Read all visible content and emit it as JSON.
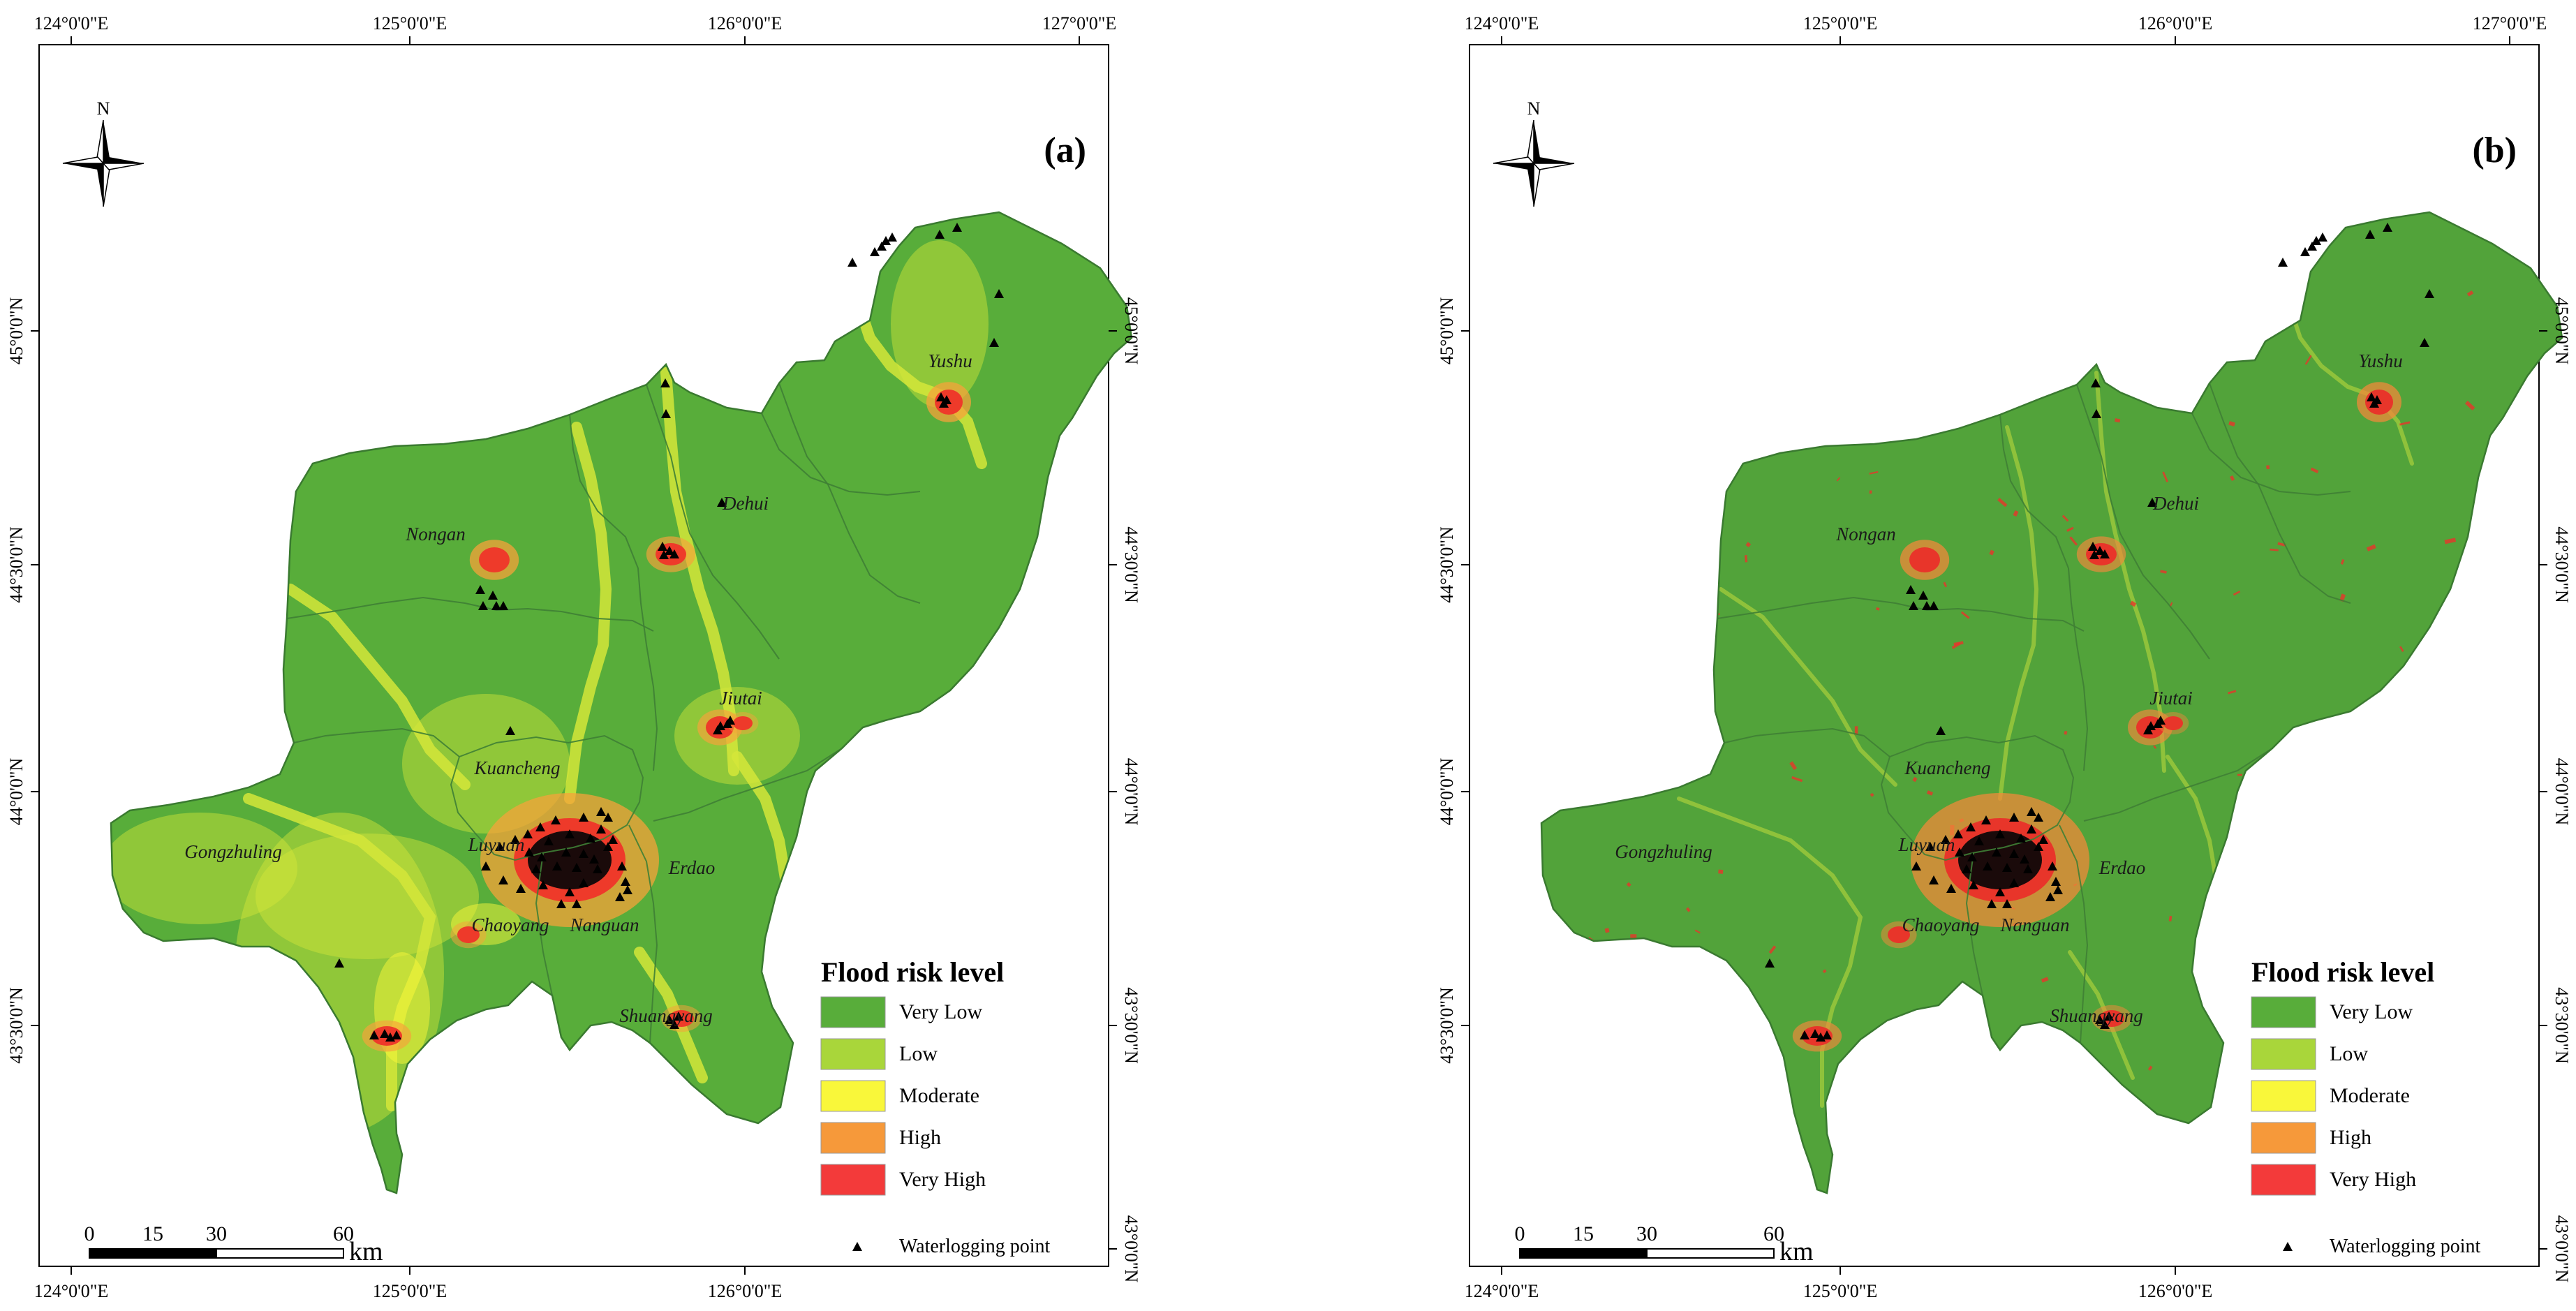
{
  "panels": [
    {
      "id": "a",
      "label": "(a)",
      "variant": "a",
      "colors": {
        "base": "#58ad3a",
        "river": "#d4e63a",
        "risk": "#f6a33a",
        "high": "#ee3a2a"
      },
      "lon_top": [
        "124°0'0\"E",
        "125°0'0\"E",
        "126°0'0\"E",
        "127°0'0\"E"
      ],
      "lon_bottom": [
        "124°0'0\"E",
        "125°0'0\"E",
        "126°0'0\"E"
      ],
      "lat_left": [
        "45°0'0\"N",
        "44°30'0\"N",
        "44°0'0\"N",
        "43°30'0\"N"
      ],
      "lat_right": [
        "45°0'0\"N",
        "44°30'0\"N",
        "44°0'0\"N",
        "43°30'0\"N",
        "43°0'0\"N"
      ]
    },
    {
      "id": "b",
      "label": "(b)",
      "variant": "b",
      "colors": {
        "base": "#52a33a",
        "river": "#a9cf3c",
        "risk": "#f08a3a",
        "high": "#e8352a"
      },
      "lon_top": [
        "124°0'0\"E",
        "125°0'0\"E",
        "126°0'0\"E",
        "127°0'0\"E"
      ],
      "lon_bottom": [
        "124°0'0\"E",
        "125°0'0\"E",
        "126°0'0\"E"
      ],
      "lat_left": [
        "45°0'0\"N",
        "44°30'0\"N",
        "44°0'0\"N",
        "43°30'0\"N"
      ],
      "lat_right": [
        "45°0'0\"N",
        "44°30'0\"N",
        "44°0'0\"N",
        "43°30'0\"N",
        "43°0'0\"N"
      ]
    }
  ],
  "places": [
    "Yushu",
    "Dehui",
    "Nongan",
    "Jiutai",
    "Kuancheng",
    "Gongzhuling",
    "Luyuan",
    "Erdao",
    "Chaoyang",
    "Nanguan",
    "Shuangyang"
  ],
  "north_label": "N",
  "scale": {
    "ticks": [
      "0",
      "15",
      "30",
      "60"
    ],
    "unit": "km"
  },
  "legend": {
    "title": "Flood risk level",
    "items": [
      {
        "label": "Very Low",
        "color": "#58ad3a"
      },
      {
        "label": "Low",
        "color": "#a9d63a"
      },
      {
        "label": "Moderate",
        "color": "#f9f73a"
      },
      {
        "label": "High",
        "color": "#f6993a"
      },
      {
        "label": "Very High",
        "color": "#f33a3a"
      }
    ],
    "point_label": "Waterlogging point"
  }
}
